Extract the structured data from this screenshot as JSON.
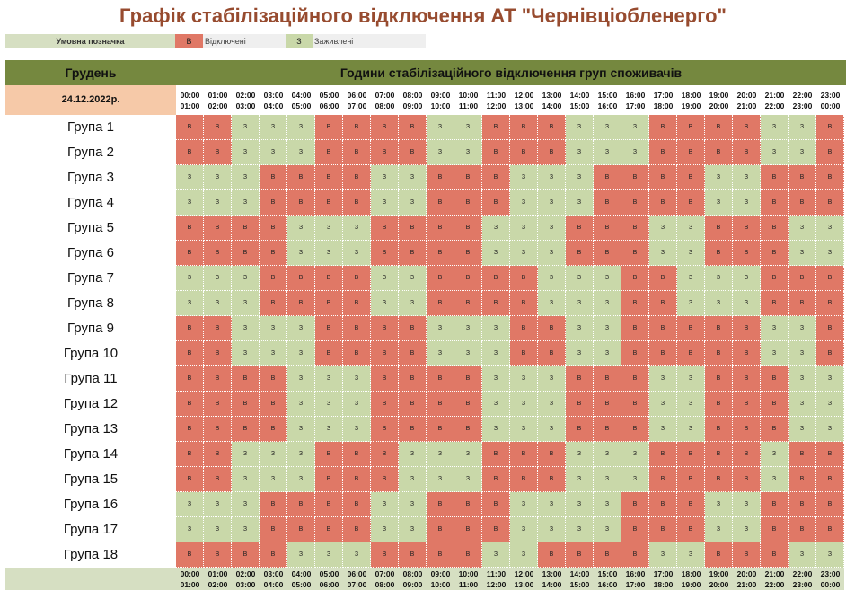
{
  "title": "Графік стабілізаційного відключення АТ \"Чернівціобленерго\"",
  "legend": {
    "label": "Умовна позначка",
    "off_code": "В",
    "off_text": "Відключені",
    "on_code": "З",
    "on_text": "Заживлені"
  },
  "header": {
    "month": "Грудень",
    "title": "Години стабілізаційного відключення груп споживачів",
    "date": "24.12.2022р."
  },
  "colors": {
    "off": "#e07866",
    "on": "#c9d8a9",
    "header": "#75883f",
    "date_bg": "#f6c9a8",
    "title": "#974b2f"
  },
  "hours": [
    {
      "from": "00:00",
      "to": "01:00"
    },
    {
      "from": "01:00",
      "to": "02:00"
    },
    {
      "from": "02:00",
      "to": "03:00"
    },
    {
      "from": "03:00",
      "to": "04:00"
    },
    {
      "from": "04:00",
      "to": "05:00"
    },
    {
      "from": "05:00",
      "to": "06:00"
    },
    {
      "from": "06:00",
      "to": "07:00"
    },
    {
      "from": "07:00",
      "to": "08:00"
    },
    {
      "from": "08:00",
      "to": "09:00"
    },
    {
      "from": "09:00",
      "to": "10:00"
    },
    {
      "from": "10:00",
      "to": "11:00"
    },
    {
      "from": "11:00",
      "to": "12:00"
    },
    {
      "from": "12:00",
      "to": "13:00"
    },
    {
      "from": "13:00",
      "to": "14:00"
    },
    {
      "from": "14:00",
      "to": "15:00"
    },
    {
      "from": "15:00",
      "to": "16:00"
    },
    {
      "from": "16:00",
      "to": "17:00"
    },
    {
      "from": "17:00",
      "to": "18:00"
    },
    {
      "from": "18:00",
      "to": "19:00"
    },
    {
      "from": "19:00",
      "to": "20:00"
    },
    {
      "from": "20:00",
      "to": "21:00"
    },
    {
      "from": "21:00",
      "to": "22:00"
    },
    {
      "from": "22:00",
      "to": "23:00"
    },
    {
      "from": "23:00",
      "to": "00:00"
    }
  ],
  "groups": [
    {
      "name": "Група 1",
      "schedule": [
        "В",
        "В",
        "З",
        "З",
        "З",
        "В",
        "В",
        "В",
        "В",
        "З",
        "З",
        "В",
        "В",
        "В",
        "З",
        "З",
        "З",
        "В",
        "В",
        "В",
        "В",
        "З",
        "З",
        "В"
      ]
    },
    {
      "name": "Група 2",
      "schedule": [
        "В",
        "В",
        "З",
        "З",
        "З",
        "В",
        "В",
        "В",
        "В",
        "З",
        "З",
        "В",
        "В",
        "В",
        "З",
        "З",
        "З",
        "В",
        "В",
        "В",
        "В",
        "З",
        "З",
        "В"
      ]
    },
    {
      "name": "Група 3",
      "schedule": [
        "З",
        "З",
        "З",
        "В",
        "В",
        "В",
        "В",
        "З",
        "З",
        "В",
        "В",
        "В",
        "З",
        "З",
        "З",
        "В",
        "В",
        "В",
        "В",
        "З",
        "З",
        "В",
        "В",
        "В"
      ]
    },
    {
      "name": "Група 4",
      "schedule": [
        "З",
        "З",
        "З",
        "В",
        "В",
        "В",
        "В",
        "З",
        "З",
        "В",
        "В",
        "В",
        "З",
        "З",
        "З",
        "В",
        "В",
        "В",
        "В",
        "З",
        "З",
        "В",
        "В",
        "В"
      ]
    },
    {
      "name": "Група 5",
      "schedule": [
        "В",
        "В",
        "В",
        "В",
        "З",
        "З",
        "З",
        "В",
        "В",
        "В",
        "В",
        "З",
        "З",
        "З",
        "В",
        "В",
        "В",
        "З",
        "З",
        "В",
        "В",
        "В",
        "З",
        "З"
      ]
    },
    {
      "name": "Група 6",
      "schedule": [
        "В",
        "В",
        "В",
        "В",
        "З",
        "З",
        "З",
        "В",
        "В",
        "В",
        "В",
        "З",
        "З",
        "З",
        "В",
        "В",
        "В",
        "З",
        "З",
        "В",
        "В",
        "В",
        "З",
        "З"
      ]
    },
    {
      "name": "Група 7",
      "schedule": [
        "З",
        "З",
        "З",
        "В",
        "В",
        "В",
        "В",
        "З",
        "З",
        "В",
        "В",
        "В",
        "В",
        "З",
        "З",
        "З",
        "В",
        "В",
        "З",
        "З",
        "З",
        "В",
        "В",
        "В"
      ]
    },
    {
      "name": "Група 8",
      "schedule": [
        "З",
        "З",
        "З",
        "В",
        "В",
        "В",
        "В",
        "З",
        "З",
        "В",
        "В",
        "В",
        "В",
        "З",
        "З",
        "З",
        "В",
        "В",
        "З",
        "З",
        "З",
        "В",
        "В",
        "В"
      ]
    },
    {
      "name": "Група 9",
      "schedule": [
        "В",
        "В",
        "З",
        "З",
        "З",
        "В",
        "В",
        "В",
        "В",
        "З",
        "З",
        "З",
        "В",
        "В",
        "З",
        "З",
        "В",
        "В",
        "В",
        "В",
        "В",
        "З",
        "З",
        "В"
      ]
    },
    {
      "name": "Група 10",
      "schedule": [
        "В",
        "В",
        "З",
        "З",
        "З",
        "В",
        "В",
        "В",
        "В",
        "З",
        "З",
        "З",
        "В",
        "В",
        "З",
        "З",
        "В",
        "В",
        "В",
        "В",
        "В",
        "З",
        "З",
        "В"
      ]
    },
    {
      "name": "Група 11",
      "schedule": [
        "В",
        "В",
        "В",
        "В",
        "З",
        "З",
        "З",
        "В",
        "В",
        "В",
        "В",
        "З",
        "З",
        "З",
        "В",
        "В",
        "В",
        "З",
        "З",
        "В",
        "В",
        "В",
        "З",
        "З"
      ]
    },
    {
      "name": "Група 12",
      "schedule": [
        "В",
        "В",
        "В",
        "В",
        "З",
        "З",
        "З",
        "В",
        "В",
        "В",
        "В",
        "З",
        "З",
        "З",
        "В",
        "В",
        "В",
        "З",
        "З",
        "В",
        "В",
        "В",
        "З",
        "З"
      ]
    },
    {
      "name": "Група 13",
      "schedule": [
        "В",
        "В",
        "В",
        "В",
        "З",
        "З",
        "З",
        "В",
        "В",
        "В",
        "В",
        "З",
        "З",
        "З",
        "В",
        "В",
        "В",
        "З",
        "З",
        "В",
        "В",
        "В",
        "З",
        "З"
      ]
    },
    {
      "name": "Група 14",
      "schedule": [
        "В",
        "В",
        "З",
        "З",
        "З",
        "В",
        "В",
        "В",
        "З",
        "З",
        "З",
        "В",
        "В",
        "В",
        "З",
        "З",
        "З",
        "В",
        "В",
        "В",
        "В",
        "З",
        "В",
        "В"
      ]
    },
    {
      "name": "Група 15",
      "schedule": [
        "В",
        "В",
        "З",
        "З",
        "З",
        "В",
        "В",
        "В",
        "З",
        "З",
        "З",
        "В",
        "В",
        "В",
        "З",
        "З",
        "З",
        "В",
        "В",
        "В",
        "В",
        "З",
        "В",
        "В"
      ]
    },
    {
      "name": "Група 16",
      "schedule": [
        "З",
        "З",
        "З",
        "В",
        "В",
        "В",
        "В",
        "З",
        "З",
        "В",
        "В",
        "В",
        "З",
        "З",
        "З",
        "З",
        "В",
        "В",
        "В",
        "З",
        "З",
        "В",
        "В",
        "В"
      ]
    },
    {
      "name": "Група 17",
      "schedule": [
        "З",
        "З",
        "З",
        "В",
        "В",
        "В",
        "В",
        "З",
        "З",
        "В",
        "В",
        "В",
        "З",
        "З",
        "З",
        "З",
        "В",
        "В",
        "В",
        "З",
        "З",
        "В",
        "В",
        "В"
      ]
    },
    {
      "name": "Група 18",
      "schedule": [
        "В",
        "В",
        "В",
        "В",
        "З",
        "З",
        "З",
        "В",
        "В",
        "В",
        "В",
        "З",
        "З",
        "В",
        "В",
        "В",
        "В",
        "З",
        "З",
        "В",
        "В",
        "В",
        "З",
        "З"
      ]
    }
  ]
}
